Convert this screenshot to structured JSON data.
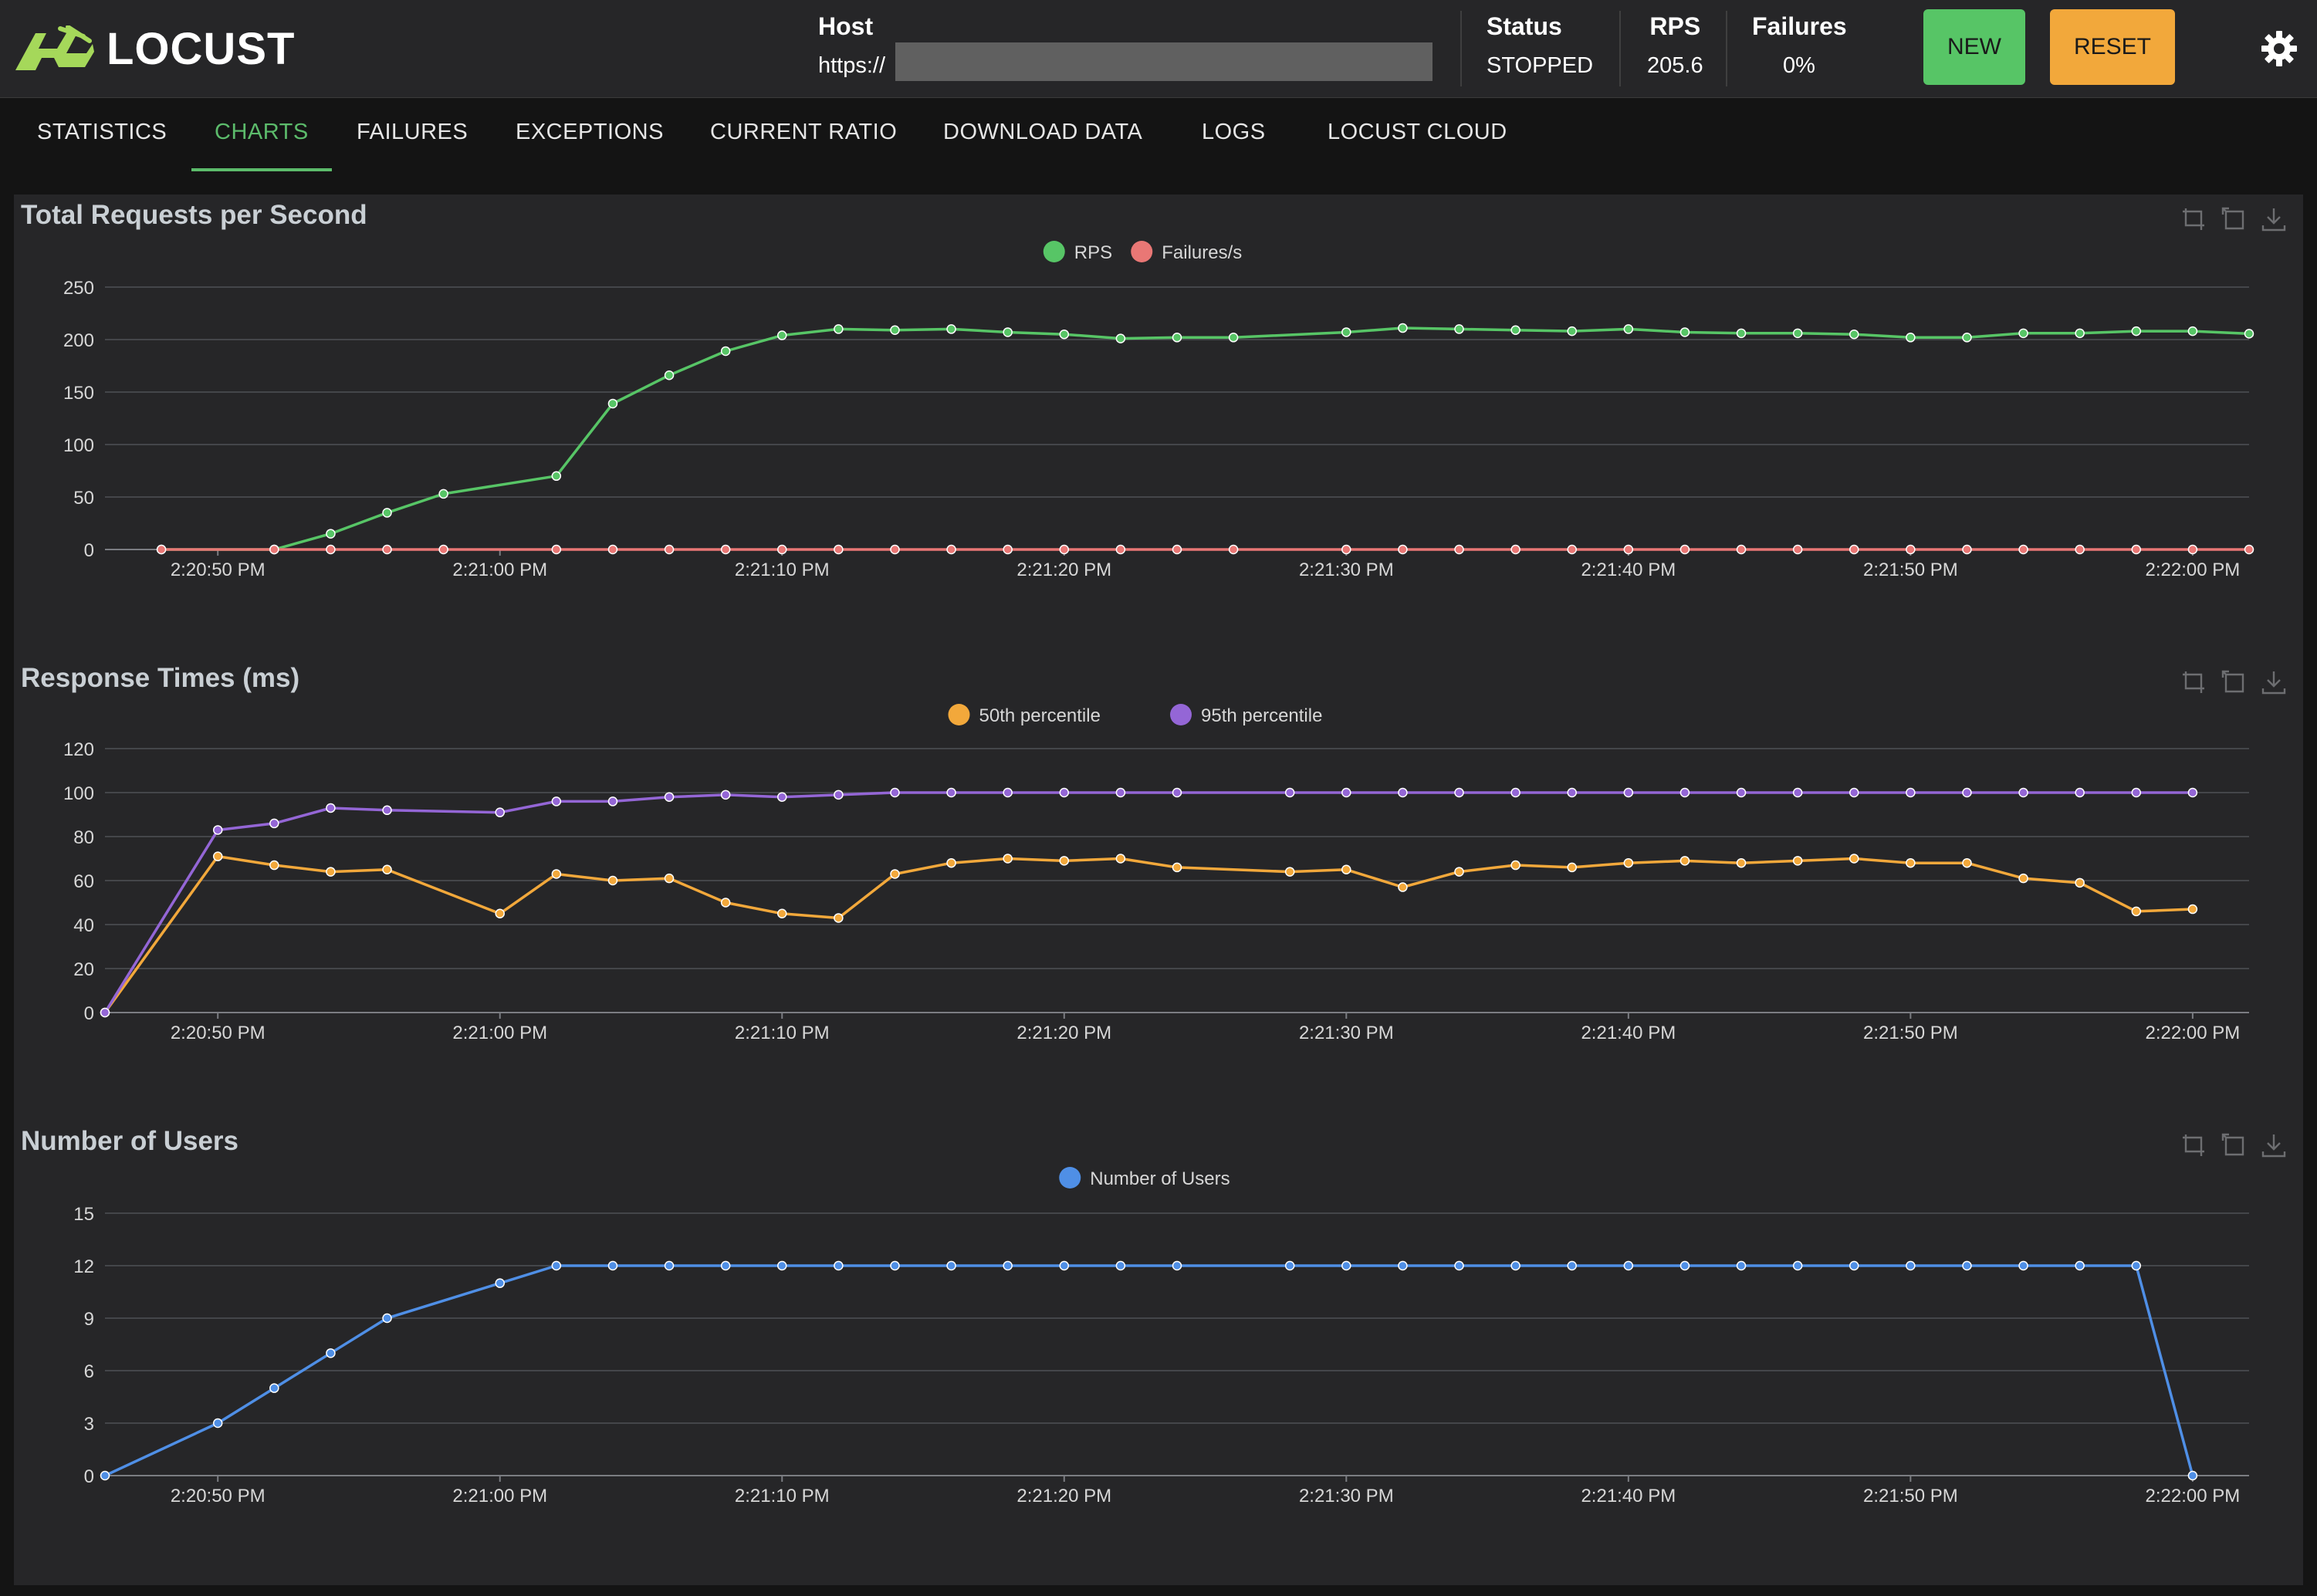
{
  "app": {
    "name": "LOCUST"
  },
  "header": {
    "host_label": "Host",
    "host_value": "https://",
    "status_label": "Status",
    "status_value": "STOPPED",
    "rps_label": "RPS",
    "rps_value": "205.6",
    "failures_label": "Failures",
    "failures_value": "0%",
    "new_button": "NEW",
    "reset_button": "RESET"
  },
  "tabs": [
    {
      "label": "STATISTICS"
    },
    {
      "label": "CHARTS",
      "active": true
    },
    {
      "label": "FAILURES"
    },
    {
      "label": "EXCEPTIONS"
    },
    {
      "label": "CURRENT RATIO"
    },
    {
      "label": "DOWNLOAD DATA"
    },
    {
      "label": "LOGS"
    },
    {
      "label": "LOCUST CLOUD"
    }
  ],
  "colors": {
    "accent": "#5cbb6b",
    "rps": "#57c566",
    "failures": "#e97775",
    "p50": "#f2a83b",
    "p95": "#9466d6",
    "users": "#4f8fe6",
    "background": "#262628"
  },
  "chart_data": [
    {
      "type": "line",
      "title": "Total Requests per Second",
      "legend_position": "top-center",
      "x": [
        "2:20:48 PM",
        "2:20:52 PM",
        "2:20:54 PM",
        "2:20:56 PM",
        "2:20:58 PM",
        "2:21:02 PM",
        "2:21:04 PM",
        "2:21:06 PM",
        "2:21:08 PM",
        "2:21:10 PM",
        "2:21:12 PM",
        "2:21:14 PM",
        "2:21:16 PM",
        "2:21:18 PM",
        "2:21:20 PM",
        "2:21:22 PM",
        "2:21:24 PM",
        "2:21:26 PM",
        "2:21:30 PM",
        "2:21:32 PM",
        "2:21:34 PM",
        "2:21:36 PM",
        "2:21:38 PM",
        "2:21:40 PM",
        "2:21:42 PM",
        "2:21:44 PM",
        "2:21:46 PM",
        "2:21:48 PM",
        "2:21:50 PM",
        "2:21:52 PM",
        "2:21:54 PM",
        "2:21:56 PM",
        "2:21:58 PM",
        "2:22:00 PM",
        "2:22:02 PM"
      ],
      "x_ticks": [
        "2:20:50 PM",
        "2:21:00 PM",
        "2:21:10 PM",
        "2:21:20 PM",
        "2:21:30 PM",
        "2:21:40 PM",
        "2:21:50 PM",
        "2:22:00 PM"
      ],
      "ylim": [
        0,
        250
      ],
      "yticks": [
        0,
        50,
        100,
        150,
        200,
        250
      ],
      "grid": true,
      "series": [
        {
          "name": "RPS",
          "color": "#57c566",
          "values": [
            0,
            0,
            15,
            35,
            53,
            70,
            139,
            166,
            189,
            204,
            210,
            209,
            210,
            207,
            205,
            201,
            202,
            202,
            207,
            211,
            210,
            209,
            208,
            210,
            207,
            206,
            206,
            205,
            202,
            202,
            206,
            206,
            208,
            208,
            205.6
          ]
        },
        {
          "name": "Failures/s",
          "color": "#e97775",
          "values": [
            0,
            0,
            0,
            0,
            0,
            0,
            0,
            0,
            0,
            0,
            0,
            0,
            0,
            0,
            0,
            0,
            0,
            0,
            0,
            0,
            0,
            0,
            0,
            0,
            0,
            0,
            0,
            0,
            0,
            0,
            0,
            0,
            0,
            0,
            0
          ]
        }
      ]
    },
    {
      "type": "line",
      "title": "Response Times (ms)",
      "legend_position": "top-center",
      "x": [
        "2:20:46 PM",
        "2:20:50 PM",
        "2:20:52 PM",
        "2:20:54 PM",
        "2:20:56 PM",
        "2:21:00 PM",
        "2:21:02 PM",
        "2:21:04 PM",
        "2:21:06 PM",
        "2:21:08 PM",
        "2:21:10 PM",
        "2:21:12 PM",
        "2:21:14 PM",
        "2:21:16 PM",
        "2:21:18 PM",
        "2:21:20 PM",
        "2:21:22 PM",
        "2:21:24 PM",
        "2:21:28 PM",
        "2:21:30 PM",
        "2:21:32 PM",
        "2:21:34 PM",
        "2:21:36 PM",
        "2:21:38 PM",
        "2:21:40 PM",
        "2:21:42 PM",
        "2:21:44 PM",
        "2:21:46 PM",
        "2:21:48 PM",
        "2:21:50 PM",
        "2:21:52 PM",
        "2:21:54 PM",
        "2:21:56 PM",
        "2:21:58 PM",
        "2:22:00 PM"
      ],
      "x_ticks": [
        "2:20:50 PM",
        "2:21:00 PM",
        "2:21:10 PM",
        "2:21:20 PM",
        "2:21:30 PM",
        "2:21:40 PM",
        "2:21:50 PM",
        "2:22:00 PM"
      ],
      "ylim": [
        0,
        120
      ],
      "yticks": [
        0,
        20,
        40,
        60,
        80,
        100,
        120
      ],
      "grid": true,
      "series": [
        {
          "name": "50th percentile",
          "color": "#f2a83b",
          "values": [
            0,
            71,
            67,
            64,
            65,
            45,
            63,
            60,
            61,
            50,
            45,
            43,
            63,
            68,
            70,
            69,
            70,
            66,
            64,
            65,
            57,
            64,
            67,
            66,
            68,
            69,
            68,
            69,
            70,
            68,
            68,
            61,
            59,
            46,
            47
          ]
        },
        {
          "name": "95th percentile",
          "color": "#9466d6",
          "values": [
            0,
            83,
            86,
            93,
            92,
            91,
            96,
            96,
            98,
            99,
            98,
            99,
            100,
            100,
            100,
            100,
            100,
            100,
            100,
            100,
            100,
            100,
            100,
            100,
            100,
            100,
            100,
            100,
            100,
            100,
            100,
            100,
            100,
            100,
            100
          ]
        }
      ]
    },
    {
      "type": "line",
      "title": "Number of Users",
      "legend_position": "top-center",
      "x": [
        "2:20:46 PM",
        "2:20:50 PM",
        "2:20:52 PM",
        "2:20:54 PM",
        "2:20:56 PM",
        "2:21:00 PM",
        "2:21:02 PM",
        "2:21:04 PM",
        "2:21:06 PM",
        "2:21:08 PM",
        "2:21:10 PM",
        "2:21:12 PM",
        "2:21:14 PM",
        "2:21:16 PM",
        "2:21:18 PM",
        "2:21:20 PM",
        "2:21:22 PM",
        "2:21:24 PM",
        "2:21:28 PM",
        "2:21:30 PM",
        "2:21:32 PM",
        "2:21:34 PM",
        "2:21:36 PM",
        "2:21:38 PM",
        "2:21:40 PM",
        "2:21:42 PM",
        "2:21:44 PM",
        "2:21:46 PM",
        "2:21:48 PM",
        "2:21:50 PM",
        "2:21:52 PM",
        "2:21:54 PM",
        "2:21:56 PM",
        "2:21:58 PM",
        "2:22:00 PM"
      ],
      "x_ticks": [
        "2:20:50 PM",
        "2:21:00 PM",
        "2:21:10 PM",
        "2:21:20 PM",
        "2:21:30 PM",
        "2:21:40 PM",
        "2:21:50 PM",
        "2:22:00 PM"
      ],
      "ylim": [
        0,
        15
      ],
      "yticks": [
        0,
        3,
        6,
        9,
        12,
        15
      ],
      "grid": true,
      "series": [
        {
          "name": "Number of Users",
          "color": "#4f8fe6",
          "values": [
            0,
            3,
            5,
            7,
            9,
            11,
            12,
            12,
            12,
            12,
            12,
            12,
            12,
            12,
            12,
            12,
            12,
            12,
            12,
            12,
            12,
            12,
            12,
            12,
            12,
            12,
            12,
            12,
            12,
            12,
            12,
            12,
            12,
            12,
            0
          ]
        }
      ]
    }
  ]
}
